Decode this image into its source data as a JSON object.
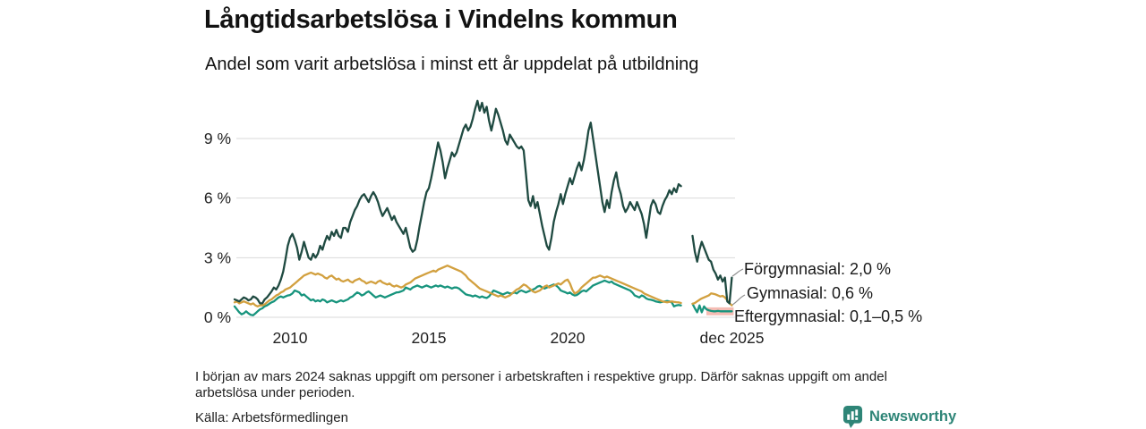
{
  "header": {
    "title": "Långtidsarbetslösa i Vindelns kommun",
    "subtitle": "Andel som varit arbetslösa i minst ett år uppdelat på utbildning"
  },
  "chart_data": {
    "type": "line",
    "title": "Långtidsarbetslösa i Vindelns kommun",
    "subtitle": "Andel som varit arbetslösa i minst ett år uppdelat på utbildning",
    "unit": "%",
    "x_start": "2008-01",
    "x_end": "2025-12",
    "ylim": [
      0,
      11
    ],
    "grid": true,
    "missing_period": {
      "from": "2024-03",
      "to": "2024-06"
    },
    "x_ticks": [
      {
        "label": "2010",
        "year": 2010
      },
      {
        "label": "2015",
        "year": 2015
      },
      {
        "label": "2020",
        "year": 2020
      },
      {
        "label": "dec 2025",
        "year": 2025.92
      }
    ],
    "y_ticks": [
      {
        "label": "0 %",
        "value": 0
      },
      {
        "label": "3 %",
        "value": 3
      },
      {
        "label": "6 %",
        "value": 6
      },
      {
        "label": "9 %",
        "value": 9
      }
    ],
    "series": [
      {
        "name": "Eftergymnasial",
        "color": "#17947d",
        "end_label": "Eftergymnasial: 0,1–0,5 %",
        "range_band": {
          "from": "2025-01",
          "to": "2025-12",
          "min": 0.1,
          "max": 0.5,
          "color": "#f5bcb4"
        },
        "values": [
          0.55,
          0.4,
          0.25,
          0.15,
          0.2,
          0.3,
          0.2,
          0.12,
          0.1,
          0.2,
          0.3,
          0.4,
          0.45,
          0.55,
          0.6,
          0.68,
          0.75,
          0.8,
          0.9,
          1.0,
          1.05,
          1.0,
          1.05,
          1.1,
          1.12,
          1.2,
          1.35,
          1.3,
          1.25,
          1.1,
          1.15,
          1.05,
          0.95,
          0.85,
          0.9,
          0.8,
          0.85,
          0.8,
          0.9,
          0.85,
          0.75,
          0.8,
          0.85,
          0.8,
          0.75,
          0.8,
          0.85,
          0.8,
          0.85,
          0.9,
          1.0,
          1.05,
          1.15,
          1.25,
          1.2,
          1.1,
          1.15,
          1.25,
          1.3,
          1.2,
          1.1,
          1.0,
          1.05,
          1.1,
          1.05,
          1.0,
          1.05,
          1.1,
          1.15,
          1.2,
          1.25,
          1.26,
          1.3,
          1.35,
          1.5,
          1.45,
          1.4,
          1.5,
          1.55,
          1.6,
          1.55,
          1.5,
          1.55,
          1.6,
          1.55,
          1.5,
          1.55,
          1.6,
          1.55,
          1.6,
          1.55,
          1.5,
          1.55,
          1.5,
          1.45,
          1.5,
          1.5,
          1.45,
          1.35,
          1.25,
          1.15,
          1.12,
          1.1,
          1.05,
          1.1,
          1.05,
          1.0,
          1.05,
          1.0,
          0.97,
          1.05,
          1.2,
          1.35,
          1.3,
          1.25,
          1.2,
          1.15,
          1.2,
          1.25,
          1.2,
          1.2,
          1.25,
          1.2,
          1.3,
          1.35,
          1.3,
          1.25,
          1.3,
          1.35,
          1.4,
          1.45,
          1.55,
          1.58,
          1.5,
          1.45,
          1.5,
          1.55,
          1.6,
          1.65,
          1.6,
          1.5,
          1.35,
          1.3,
          1.26,
          1.2,
          1.25,
          1.15,
          1.1,
          1.12,
          1.2,
          1.3,
          1.35,
          1.3,
          1.4,
          1.5,
          1.6,
          1.65,
          1.7,
          1.75,
          1.8,
          1.85,
          1.8,
          1.75,
          1.8,
          1.7,
          1.65,
          1.6,
          1.55,
          1.5,
          1.45,
          1.4,
          1.35,
          1.25,
          1.1,
          1.05,
          1.0,
          1.1,
          1.05,
          0.95,
          0.9,
          0.88,
          0.85,
          0.8,
          0.78,
          0.75,
          0.78,
          0.8,
          0.82,
          0.8,
          0.75,
          0.55,
          0.6,
          0.62,
          0.6,
          null,
          null,
          null,
          null,
          0.68,
          0.45,
          0.25,
          0.6,
          0.25,
          0.55,
          0.4,
          0.35,
          0.32,
          0.3,
          0.3,
          0.32,
          0.3,
          0.3,
          0.3,
          0.3,
          0.3,
          0.3
        ]
      },
      {
        "name": "Gymnasial",
        "color": "#d2a03f",
        "end_label": "Gymnasial: 0,6 %",
        "values": [
          0.75,
          0.8,
          0.7,
          0.75,
          0.8,
          0.75,
          0.7,
          0.65,
          0.7,
          0.6,
          0.55,
          0.6,
          0.6,
          0.65,
          0.75,
          0.85,
          0.9,
          1.0,
          1.1,
          1.15,
          1.25,
          1.3,
          1.4,
          1.45,
          1.5,
          1.6,
          1.7,
          1.8,
          1.9,
          2.0,
          2.1,
          2.15,
          2.2,
          2.25,
          2.2,
          2.15,
          2.2,
          2.15,
          2.1,
          2.0,
          1.95,
          2.05,
          2.1,
          2.0,
          1.9,
          1.95,
          1.85,
          1.8,
          1.85,
          1.9,
          1.8,
          1.75,
          1.85,
          1.9,
          1.95,
          1.85,
          1.8,
          1.7,
          1.75,
          1.8,
          1.75,
          1.7,
          1.8,
          1.85,
          1.75,
          1.7,
          1.65,
          1.7,
          1.6,
          1.55,
          1.6,
          1.55,
          1.5,
          1.55,
          1.65,
          1.7,
          1.75,
          1.85,
          1.95,
          2.0,
          2.05,
          2.1,
          2.15,
          2.2,
          2.25,
          2.3,
          2.35,
          2.3,
          2.4,
          2.45,
          2.5,
          2.55,
          2.6,
          2.55,
          2.5,
          2.45,
          2.4,
          2.35,
          2.3,
          2.2,
          2.1,
          1.95,
          1.85,
          1.75,
          1.65,
          1.55,
          1.45,
          1.4,
          1.35,
          1.3,
          1.25,
          1.2,
          1.15,
          1.1,
          1.05,
          1.1,
          1.05,
          1.0,
          1.05,
          1.1,
          1.2,
          1.3,
          1.4,
          1.45,
          1.55,
          1.65,
          1.6,
          1.5,
          1.4,
          1.3,
          1.25,
          1.3,
          1.35,
          1.45,
          1.55,
          1.6,
          1.5,
          1.55,
          1.6,
          1.65,
          1.7,
          1.65,
          1.75,
          1.85,
          1.9,
          1.7,
          1.4,
          1.2,
          1.25,
          1.35,
          1.5,
          1.6,
          1.7,
          1.8,
          1.9,
          2.0,
          2.0,
          2.05,
          2.1,
          2.05,
          2.0,
          2.05,
          2.0,
          1.95,
          1.9,
          1.85,
          1.8,
          1.75,
          1.7,
          1.65,
          1.6,
          1.55,
          1.5,
          1.45,
          1.4,
          1.35,
          1.3,
          1.2,
          1.15,
          1.1,
          1.05,
          1.0,
          0.95,
          0.9,
          0.85,
          0.8,
          0.78,
          0.75,
          0.78,
          0.8,
          0.78,
          0.76,
          0.75,
          0.72,
          null,
          null,
          null,
          null,
          0.68,
          0.72,
          0.8,
          0.88,
          0.95,
          1.0,
          1.05,
          1.1,
          1.2,
          1.18,
          1.15,
          1.1,
          1.05,
          1.08,
          1.0,
          0.85,
          0.7,
          0.6
        ]
      },
      {
        "name": "Förgymnasial",
        "color": "#1f4a41",
        "end_label": "Förgymnasial: 2,0 %",
        "values": [
          0.9,
          0.85,
          0.8,
          0.9,
          1.0,
          0.95,
          0.85,
          0.9,
          1.05,
          1.0,
          0.9,
          0.7,
          0.7,
          0.9,
          1.0,
          1.15,
          1.3,
          1.5,
          1.4,
          1.6,
          1.9,
          2.3,
          2.9,
          3.6,
          4.0,
          4.2,
          3.9,
          3.5,
          2.9,
          3.3,
          3.8,
          3.4,
          3.0,
          2.9,
          3.2,
          3.0,
          3.2,
          3.6,
          3.4,
          3.8,
          4.1,
          3.9,
          4.3,
          4.1,
          4.4,
          4.1,
          4.0,
          4.5,
          4.5,
          4.3,
          4.8,
          5.1,
          5.4,
          5.6,
          5.9,
          6.1,
          6.2,
          6.0,
          5.8,
          6.1,
          6.3,
          6.1,
          5.8,
          5.4,
          5.1,
          5.3,
          5.5,
          5.2,
          4.9,
          5.1,
          4.8,
          4.6,
          4.4,
          4.2,
          4.5,
          4.0,
          3.5,
          3.3,
          3.4,
          3.9,
          4.6,
          5.2,
          5.8,
          6.3,
          6.5,
          7.0,
          7.6,
          8.2,
          8.8,
          8.4,
          7.8,
          7.0,
          7.5,
          7.9,
          8.3,
          8.1,
          8.3,
          8.7,
          9.1,
          9.5,
          9.7,
          9.4,
          9.6,
          10.0,
          10.5,
          10.9,
          10.4,
          10.8,
          10.3,
          10.6,
          9.9,
          9.4,
          9.9,
          10.5,
          10.2,
          9.8,
          9.4,
          8.9,
          8.7,
          9.2,
          9.0,
          8.8,
          8.6,
          8.5,
          8.6,
          8.4,
          7.2,
          5.9,
          5.6,
          6.1,
          5.5,
          5.8,
          5.2,
          4.6,
          4.1,
          3.6,
          3.4,
          4.0,
          4.8,
          5.3,
          5.7,
          6.2,
          5.7,
          6.2,
          6.6,
          7.0,
          6.7,
          7.1,
          7.5,
          7.8,
          7.4,
          7.9,
          8.6,
          9.4,
          9.8,
          9.0,
          8.2,
          7.4,
          6.6,
          5.8,
          5.3,
          5.9,
          5.5,
          6.3,
          6.9,
          7.3,
          6.6,
          6.2,
          5.6,
          5.3,
          5.5,
          5.8,
          5.6,
          5.4,
          5.8,
          5.5,
          5.2,
          4.7,
          4.0,
          4.8,
          5.6,
          5.9,
          5.7,
          5.3,
          5.2,
          5.6,
          5.9,
          6.1,
          6.4,
          6.2,
          6.5,
          6.3,
          6.7,
          6.6,
          null,
          null,
          null,
          null,
          4.1,
          3.3,
          2.8,
          3.4,
          3.8,
          3.5,
          3.2,
          2.9,
          2.8,
          2.4,
          2.2,
          1.9,
          2.1,
          1.8,
          2.0,
          0.8,
          0.7,
          2.0
        ]
      }
    ]
  },
  "footnote": "I början av mars 2024 saknas uppgift om personer i arbetskraften i respektive grupp. Därför saknas uppgift om andel arbetslösa under perioden.",
  "source": "Källa: Arbetsförmedlingen",
  "branding": {
    "name": "Newsworthy",
    "color": "#2e8577"
  }
}
